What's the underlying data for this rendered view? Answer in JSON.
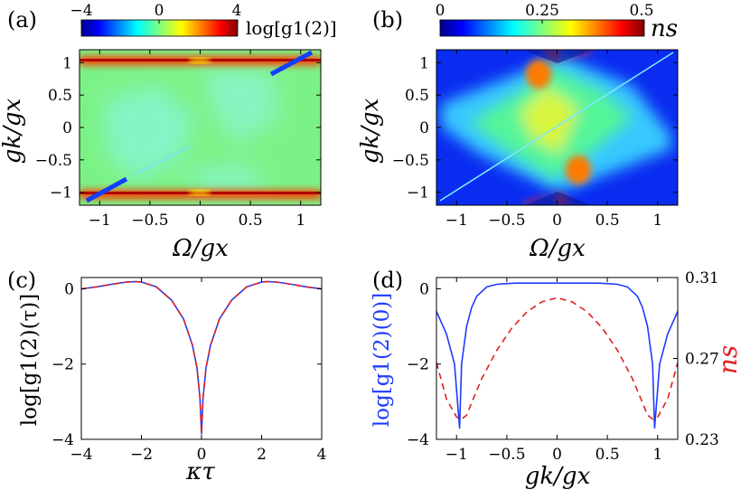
{
  "chart_data": [
    {
      "panel": "(a)",
      "type": "heatmap",
      "quantity": "log g1(2)",
      "colorbar_label": "log[g1(2)]",
      "colorbar_ticks": [
        "−4",
        "0",
        "4"
      ],
      "clim": [
        -4,
        4
      ],
      "xlabel": "Ω/gx",
      "ylabel": "gk/gx",
      "xlim": [
        -1.2,
        1.2
      ],
      "ylim": [
        -1.2,
        1.2
      ],
      "xticks": [
        "−1",
        "−0.5",
        "0",
        "0.5",
        "1"
      ],
      "yticks": [
        "−1",
        "−0.5",
        "0",
        "0.5",
        "1"
      ]
    },
    {
      "panel": "(b)",
      "type": "heatmap",
      "quantity": "ns",
      "colorbar_label": "ns",
      "colorbar_ticks": [
        "0",
        "0.25",
        "0.5"
      ],
      "clim": [
        0,
        0.5
      ],
      "xlabel": "Ω/gx",
      "ylabel": "gk/gx",
      "xlim": [
        -1.2,
        1.2
      ],
      "ylim": [
        -1.2,
        1.2
      ],
      "xticks": [
        "−1",
        "−0.5",
        "0",
        "0.5",
        "1"
      ],
      "yticks": [
        "−1",
        "−0.5",
        "0",
        "0.5",
        "1"
      ]
    },
    {
      "panel": "(c)",
      "type": "line",
      "xlabel": "κτ",
      "ylabel": "log[g1(2)(τ)]",
      "xlim": [
        -4,
        4
      ],
      "ylim": [
        -4,
        0.3
      ],
      "xticks": [
        "−4",
        "−2",
        "0",
        "2",
        "4"
      ],
      "yticks": [
        "−4",
        "−2",
        "0"
      ],
      "x": [
        -4,
        -3.5,
        -3,
        -2.5,
        -2.2,
        -2,
        -1.5,
        -1,
        -0.6,
        -0.3,
        -0.15,
        -0.05,
        0,
        0.05,
        0.15,
        0.3,
        0.6,
        1,
        1.5,
        2,
        2.2,
        2.5,
        3,
        3.5,
        4
      ],
      "series": [
        {
          "name": "solid",
          "color": "#1f3bff",
          "dash": "solid",
          "values": [
            0.0,
            0.05,
            0.12,
            0.18,
            0.19,
            0.18,
            0.05,
            -0.3,
            -0.8,
            -1.5,
            -2.1,
            -2.9,
            -3.85,
            -2.9,
            -2.1,
            -1.5,
            -0.8,
            -0.3,
            0.05,
            0.18,
            0.19,
            0.18,
            0.12,
            0.05,
            0.0
          ]
        },
        {
          "name": "dashed",
          "color": "#e02020",
          "dash": "dashed",
          "values": [
            0.0,
            0.05,
            0.12,
            0.18,
            0.19,
            0.18,
            0.05,
            -0.3,
            -0.8,
            -1.5,
            -2.1,
            -2.9,
            -3.85,
            -2.9,
            -2.1,
            -1.5,
            -0.8,
            -0.3,
            0.05,
            0.18,
            0.19,
            0.18,
            0.12,
            0.05,
            0.0
          ]
        }
      ]
    },
    {
      "panel": "(d)",
      "type": "line",
      "xlabel": "gk/gx",
      "ylabel_left": "log[g1(2)(0)]",
      "ylabel_right": "ns",
      "xlim": [
        -1.2,
        1.2
      ],
      "ylim_left": [
        -4,
        0.3
      ],
      "ylim_right": [
        0.23,
        0.31
      ],
      "xticks": [
        "−1",
        "−0.5",
        "0",
        "0.5",
        "1"
      ],
      "yticks_left": [
        "−4",
        "−2",
        "0"
      ],
      "yticks_right": [
        "0.23",
        "0.27",
        "0.31"
      ],
      "series": [
        {
          "name": "log g1(2)(0)",
          "axis": "left",
          "color": "#1f3bff",
          "dash": "solid",
          "x": [
            -1.2,
            -1.1,
            -1.02,
            -0.97,
            -0.95,
            -0.9,
            -0.85,
            -0.8,
            -0.7,
            -0.6,
            -0.5,
            -0.4,
            -0.2,
            0,
            0.2,
            0.4,
            0.5,
            0.6,
            0.7,
            0.8,
            0.85,
            0.9,
            0.95,
            0.97,
            1.02,
            1.1,
            1.2
          ],
          "values": [
            -0.6,
            -1.2,
            -2.0,
            -3.7,
            -2.0,
            -1.0,
            -0.5,
            -0.2,
            0.05,
            0.12,
            0.14,
            0.15,
            0.15,
            0.15,
            0.15,
            0.15,
            0.14,
            0.12,
            0.05,
            -0.2,
            -0.5,
            -1.0,
            -2.0,
            -3.7,
            -2.0,
            -1.2,
            -0.6
          ]
        },
        {
          "name": "ns",
          "axis": "right",
          "color": "#e02020",
          "dash": "dashed",
          "x": [
            -1.2,
            -1.1,
            -1.0,
            -0.95,
            -0.9,
            -0.85,
            -0.75,
            -0.6,
            -0.45,
            -0.3,
            -0.15,
            0,
            0.15,
            0.3,
            0.45,
            0.6,
            0.75,
            0.85,
            0.9,
            0.95,
            1.0,
            1.1,
            1.2
          ],
          "values": [
            0.268,
            0.25,
            0.241,
            0.24,
            0.242,
            0.248,
            0.26,
            0.274,
            0.285,
            0.293,
            0.298,
            0.3,
            0.298,
            0.293,
            0.285,
            0.274,
            0.26,
            0.248,
            0.242,
            0.24,
            0.241,
            0.25,
            0.268
          ]
        }
      ]
    }
  ]
}
